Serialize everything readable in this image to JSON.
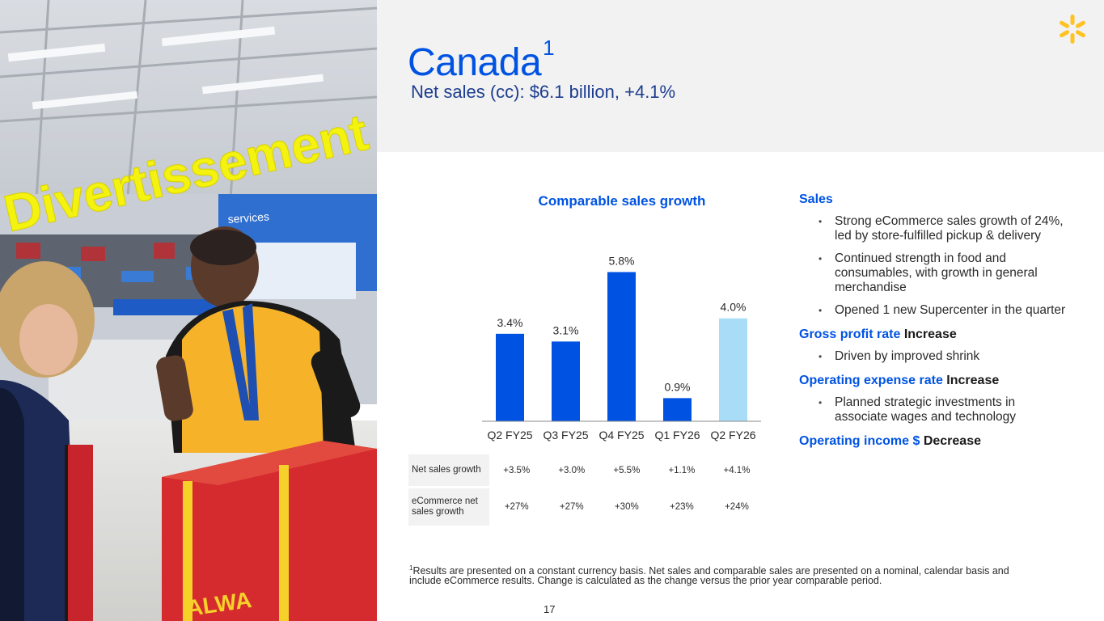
{
  "slide": {
    "title": "Canada",
    "title_footnote_mark": "1",
    "subtitle": "Net sales (cc): $6.1 billion, +4.1%",
    "page_number": "17"
  },
  "photo": {
    "store_sign": "Divertissement",
    "services_sign": "services",
    "box_text": "ALWA"
  },
  "colors": {
    "brand_blue": "#0053e2",
    "highlight_bar": "#a9ddf7",
    "spark_yellow": "#ffc220",
    "header_band": "#f2f2f2"
  },
  "chart_data": {
    "type": "bar",
    "title": "Comparable sales growth",
    "categories": [
      "Q2 FY25",
      "Q3 FY25",
      "Q4 FY25",
      "Q1 FY26",
      "Q2 FY26"
    ],
    "values": [
      3.4,
      3.1,
      5.8,
      0.9,
      4.0
    ],
    "data_labels": [
      "3.4%",
      "3.1%",
      "5.8%",
      "0.9%",
      "4.0%"
    ],
    "highlighted_index": 4,
    "ylim": [
      0,
      6.6
    ],
    "grid": false,
    "legend": "none"
  },
  "table": {
    "rows": [
      {
        "label": "Net sales growth",
        "values": [
          "+3.5%",
          "+3.0%",
          "+5.5%",
          "+1.1%",
          "+4.1%"
        ]
      },
      {
        "label": "eCommerce net sales growth",
        "values": [
          "+27%",
          "+27%",
          "+30%",
          "+23%",
          "+24%"
        ]
      }
    ]
  },
  "notes": {
    "sales_heading": "Sales",
    "sales_bullets": [
      "Strong eCommerce sales growth of 24%, led by store-fulfilled pickup & delivery",
      "Continued strength in food and consumables, with growth in general merchandise",
      "Opened 1 new Supercenter in the quarter"
    ],
    "gross_profit_heading": "Gross profit rate",
    "gross_profit_direction": "Increase",
    "gross_profit_bullets": [
      "Driven by improved shrink"
    ],
    "opex_heading": "Operating expense rate",
    "opex_direction": "Increase",
    "opex_bullets": [
      "Planned strategic investments in associate wages and technology"
    ],
    "op_income_heading": "Operating income $",
    "op_income_direction": "Decrease"
  },
  "footnote": {
    "mark": "1",
    "text": "Results are presented on a constant currency basis. Net sales and comparable sales are presented on a nominal, calendar basis and include eCommerce results. Change is calculated as the change versus the prior year comparable period."
  }
}
